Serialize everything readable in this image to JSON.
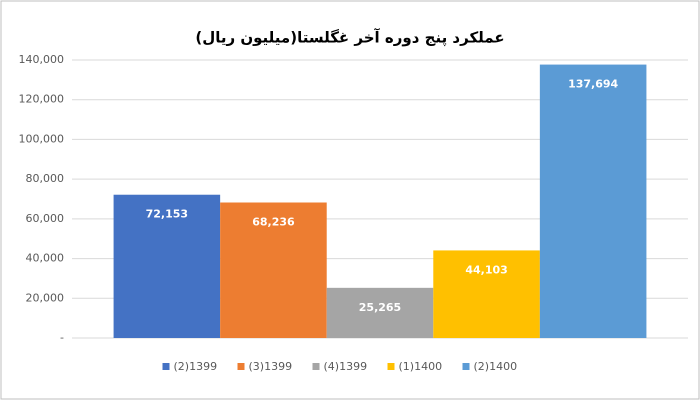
{
  "chart_data": {
    "type": "bar",
    "title": "عملکرد پنج دوره آخر غگلستا(میلیون ریال)",
    "categories": [
      null
    ],
    "series": [
      {
        "name": "(2)1399",
        "color": "#4472c4",
        "values": [
          72153
        ],
        "value_labels": [
          "72,153"
        ]
      },
      {
        "name": "(3)1399",
        "color": "#ed7d31",
        "values": [
          68236
        ],
        "value_labels": [
          "68,236"
        ]
      },
      {
        "name": "(4)1399",
        "color": "#a5a5a5",
        "values": [
          25265
        ],
        "value_labels": [
          "25,265"
        ]
      },
      {
        "name": "(1)1400",
        "color": "#ffc000",
        "values": [
          44103
        ],
        "value_labels": [
          "44,103"
        ]
      },
      {
        "name": "(2)1400",
        "color": "#5b9bd5",
        "values": [
          137694
        ],
        "value_labels": [
          "137,694"
        ]
      }
    ],
    "ylim": [
      0,
      140000
    ],
    "yticks": [
      {
        "value": 0,
        "label": "-"
      },
      {
        "value": 20000,
        "label": "20,000"
      },
      {
        "value": 40000,
        "label": "40,000"
      },
      {
        "value": 60000,
        "label": "60,000"
      },
      {
        "value": 80000,
        "label": "80,000"
      },
      {
        "value": 100000,
        "label": "100,000"
      },
      {
        "value": 120000,
        "label": "120,000"
      },
      {
        "value": 140000,
        "label": "140,000"
      }
    ],
    "grid": true,
    "legend": "bottom"
  }
}
